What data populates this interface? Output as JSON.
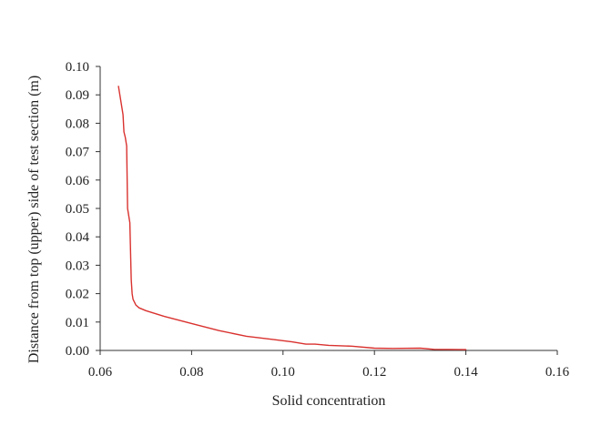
{
  "chart_data": {
    "type": "line",
    "xlabel": "Solid concentration",
    "ylabel": "Distance from top (upper) side of test section (m)",
    "xlim": [
      0.06,
      0.16
    ],
    "ylim": [
      0.0,
      0.1
    ],
    "x_ticks": [
      "0.06",
      "0.08",
      "0.10",
      "0.12",
      "0.14",
      "0.16"
    ],
    "y_ticks": [
      "0.00",
      "0.01",
      "0.02",
      "0.03",
      "0.04",
      "0.05",
      "0.06",
      "0.07",
      "0.08",
      "0.09",
      "0.10"
    ],
    "grid": false,
    "series": [
      {
        "color": "#d9322f",
        "x": [
          0.064,
          0.0645,
          0.065,
          0.0652,
          0.0655,
          0.0658,
          0.066,
          0.0665,
          0.0668,
          0.067,
          0.0672,
          0.0678,
          0.0685,
          0.07,
          0.074,
          0.08,
          0.086,
          0.092,
          0.098,
          0.102,
          0.105,
          0.107,
          0.11,
          0.115,
          0.12,
          0.124,
          0.13,
          0.133,
          0.14
        ],
        "y": [
          0.093,
          0.088,
          0.083,
          0.077,
          0.075,
          0.072,
          0.05,
          0.045,
          0.025,
          0.02,
          0.018,
          0.016,
          0.015,
          0.014,
          0.012,
          0.0095,
          0.007,
          0.005,
          0.0038,
          0.003,
          0.0022,
          0.0022,
          0.0018,
          0.0015,
          0.0008,
          0.0007,
          0.0008,
          0.0004,
          0.0003
        ]
      }
    ]
  }
}
